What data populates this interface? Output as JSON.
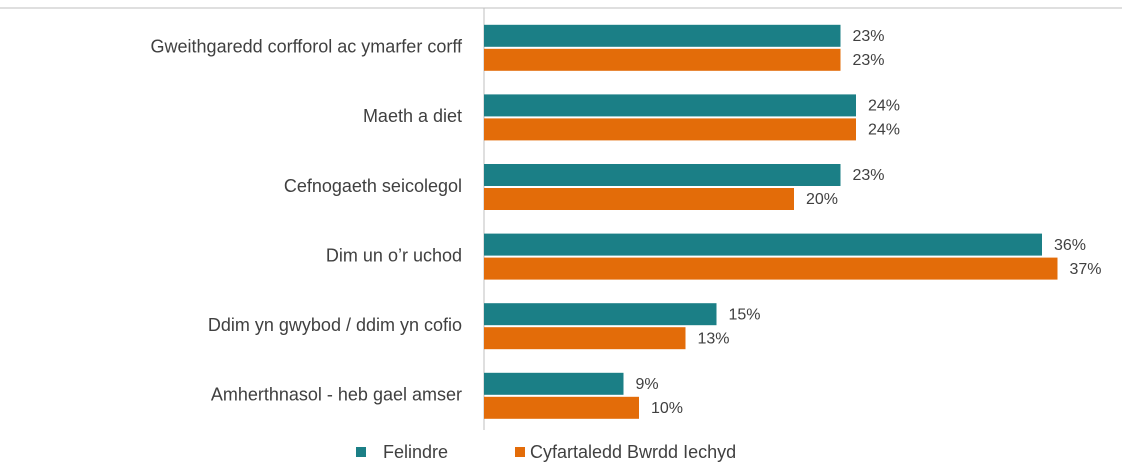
{
  "chart_data": {
    "type": "bar",
    "orientation": "horizontal",
    "categories": [
      "Gweithgaredd corfforol ac ymarfer corff",
      "Maeth a diet",
      "Cefnogaeth seicolegol",
      "Dim un o’r uchod",
      "Ddim yn gwybod / ddim yn cofio",
      "Amherthnasol - heb gael amser"
    ],
    "series": [
      {
        "name": "Felindre",
        "color": "#1b7f86",
        "values": [
          23,
          24,
          23,
          36,
          15,
          9
        ],
        "value_labels": [
          "23%",
          "24%",
          "23%",
          "36%",
          "15%",
          "9%"
        ]
      },
      {
        "name": "Cyfartaledd Bwrdd Iechyd",
        "color": "#e36c09",
        "values": [
          23,
          24,
          20,
          37,
          13,
          10
        ],
        "value_labels": [
          "23%",
          "24%",
          "20%",
          "37%",
          "13%",
          "10%"
        ]
      }
    ],
    "xlim": [
      0,
      40
    ],
    "legend": "bottom"
  }
}
